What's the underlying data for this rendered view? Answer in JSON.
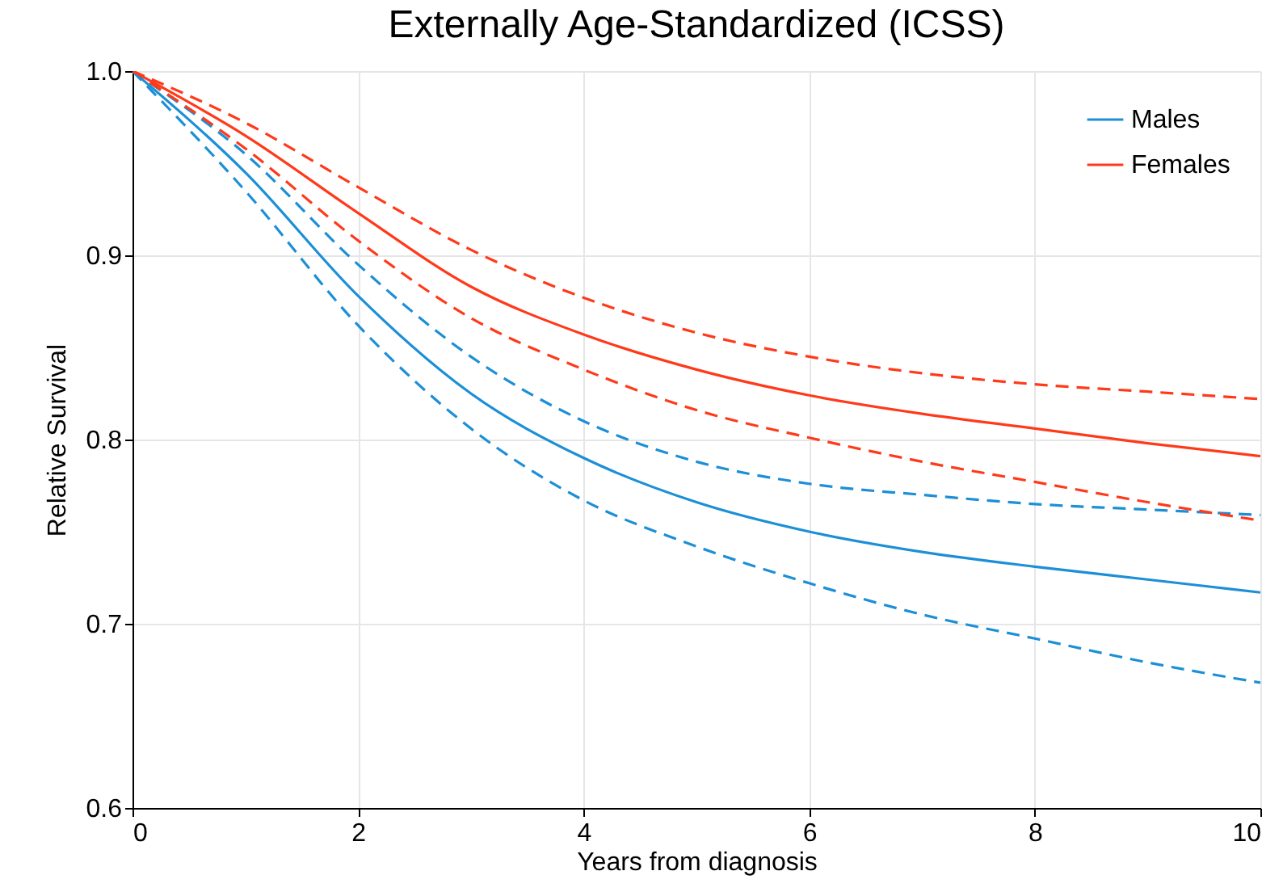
{
  "chart_data": {
    "type": "line",
    "title": "Externally Age-Standardized (ICSS)",
    "xlabel": "Years from diagnosis",
    "ylabel": "Relative Survival",
    "x": [
      0,
      1,
      2,
      3,
      4,
      5,
      6,
      7,
      8,
      9,
      10
    ],
    "series": [
      {
        "color": "#1c8fd6",
        "line_style": "dashed",
        "values": [
          1.0,
          0.955,
          0.895,
          0.845,
          0.81,
          0.788,
          0.776,
          0.77,
          0.765,
          0.762,
          0.759
        ]
      },
      {
        "color": "#1c8fd6",
        "line_style": "dashed",
        "values": [
          1.0,
          0.935,
          0.862,
          0.806,
          0.767,
          0.742,
          0.722,
          0.705,
          0.692,
          0.679,
          0.668
        ]
      },
      {
        "color": "#ff3a1a",
        "line_style": "dashed",
        "values": [
          1.0,
          0.972,
          0.937,
          0.903,
          0.877,
          0.858,
          0.845,
          0.836,
          0.83,
          0.826,
          0.822
        ]
      },
      {
        "color": "#ff3a1a",
        "line_style": "dashed",
        "values": [
          1.0,
          0.958,
          0.908,
          0.866,
          0.838,
          0.816,
          0.801,
          0.788,
          0.777,
          0.766,
          0.756
        ]
      },
      {
        "name": "Males",
        "color": "#1c8fd6",
        "line_style": "solid",
        "values": [
          1.0,
          0.945,
          0.878,
          0.825,
          0.79,
          0.766,
          0.75,
          0.739,
          0.731,
          0.724,
          0.717
        ]
      },
      {
        "name": "Females",
        "color": "#ff3a1a",
        "line_style": "solid",
        "values": [
          1.0,
          0.965,
          0.923,
          0.883,
          0.857,
          0.838,
          0.824,
          0.814,
          0.806,
          0.798,
          0.791
        ]
      }
    ],
    "xlim": [
      0,
      10
    ],
    "xticks": [
      0,
      2,
      4,
      6,
      8,
      10
    ],
    "ylim": [
      0.6,
      1.0
    ],
    "yticks": [
      0.6,
      0.7,
      0.8,
      0.9,
      {
        "value": 1.0,
        "label": "1.0"
      }
    ],
    "grid": true,
    "legend": "top right"
  }
}
